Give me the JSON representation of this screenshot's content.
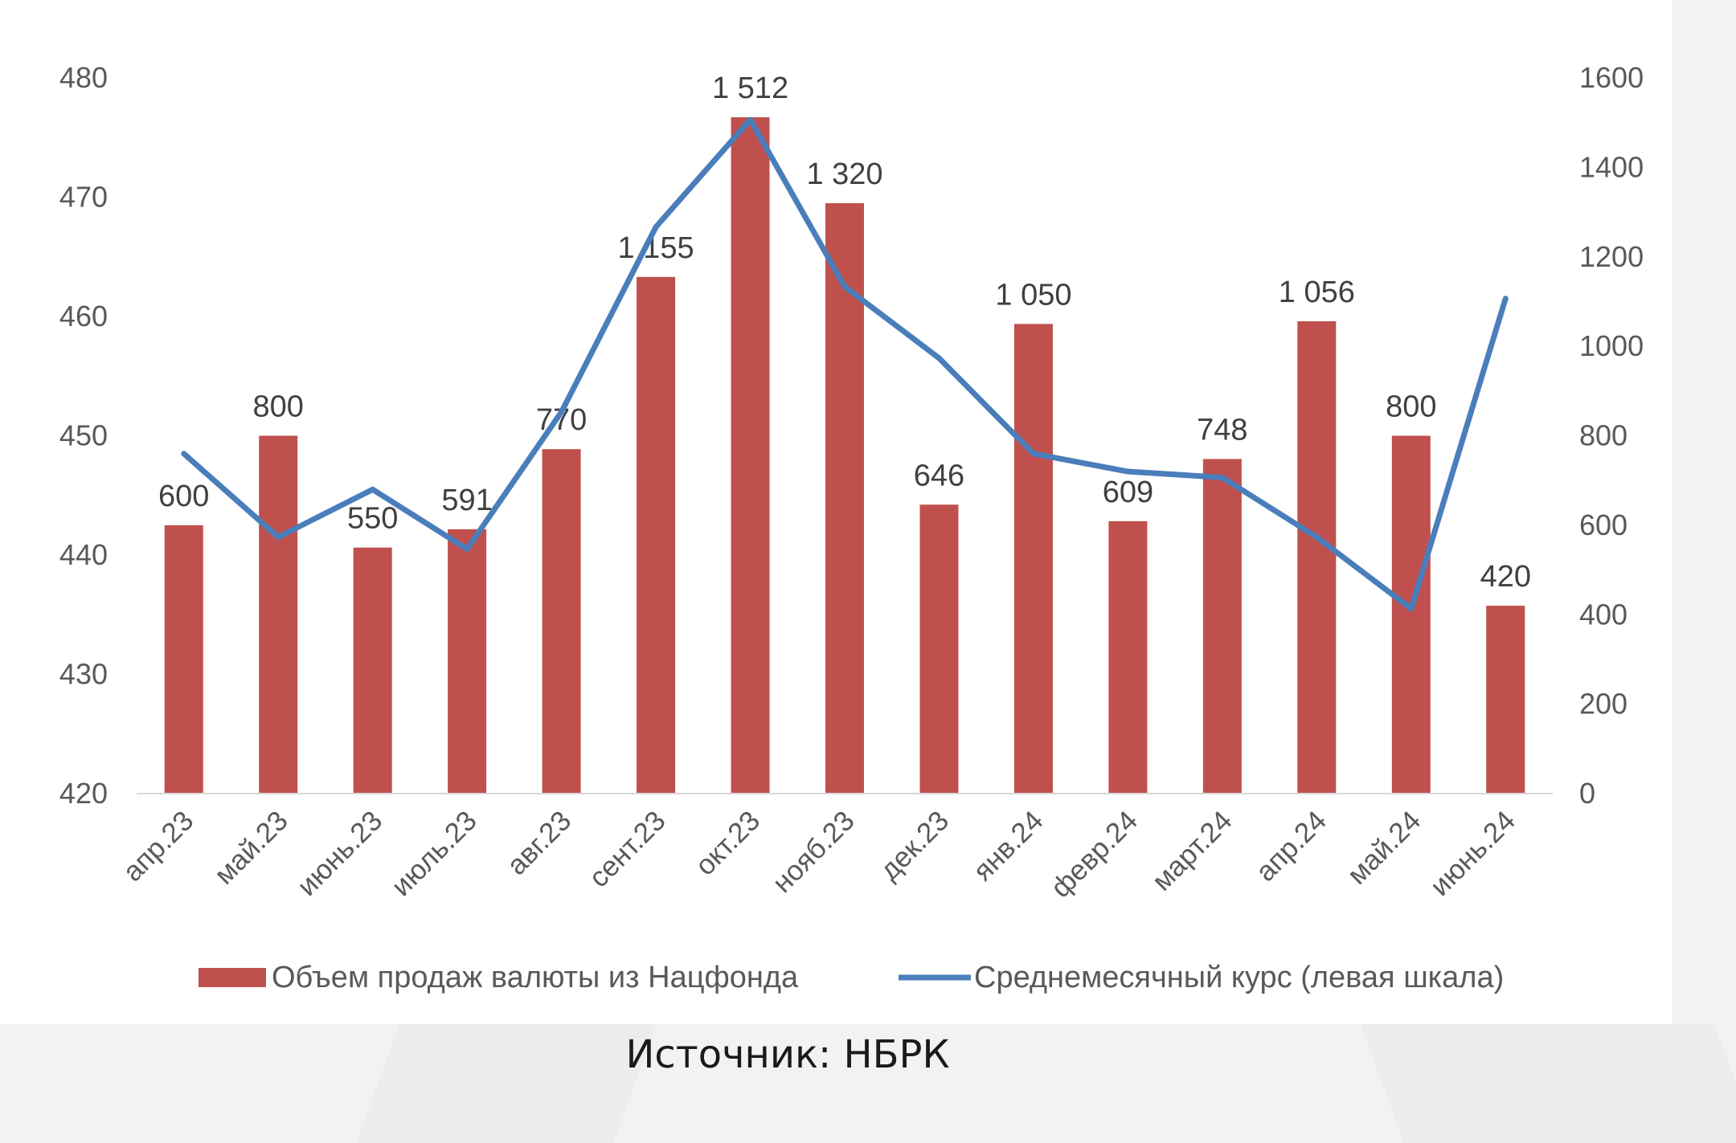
{
  "colors": {
    "bar": "#c0504d",
    "line": "#4a7ebb",
    "axis_text": "#595959",
    "label_text": "#404040",
    "axis_line": "#d9d9d9"
  },
  "chart_data": {
    "type": "bar",
    "categories": [
      "апр.23",
      "май.23",
      "июнь.23",
      "июль.23",
      "авг.23",
      "сент.23",
      "окт.23",
      "нояб.23",
      "дек.23",
      "янв.24",
      "февр.24",
      "март.24",
      "апр.24",
      "май.24",
      "июнь.24"
    ],
    "series": [
      {
        "name": "Объем продаж валюты из Нацфонда",
        "type": "bar",
        "axis": "right",
        "values": [
          600,
          800,
          550,
          591,
          770,
          1155,
          1512,
          1320,
          646,
          1050,
          609,
          748,
          1056,
          800,
          420
        ],
        "data_labels": [
          "600",
          "800",
          "550",
          "591",
          "770",
          "1 155",
          "1 512",
          "1 320",
          "646",
          "1 050",
          "609",
          "748",
          "1 056",
          "800",
          "420"
        ]
      },
      {
        "name": "Среднемесячный курс (левая шкала)",
        "type": "line",
        "axis": "left",
        "values": [
          448.5,
          441.5,
          445.5,
          440.5,
          452.0,
          467.5,
          476.5,
          462.5,
          456.5,
          448.5,
          447.0,
          446.5,
          441.5,
          435.5,
          461.5
        ]
      }
    ],
    "y_left": {
      "range": [
        420,
        480
      ],
      "ticks": [
        "420",
        "430",
        "440",
        "450",
        "460",
        "470",
        "480"
      ]
    },
    "y_right": {
      "range": [
        0,
        1600
      ],
      "ticks": [
        "0",
        "200",
        "400",
        "600",
        "800",
        "1000",
        "1200",
        "1400",
        "1600"
      ]
    },
    "legend_position": "bottom",
    "grid": false
  },
  "source": "Источник: НБРК"
}
